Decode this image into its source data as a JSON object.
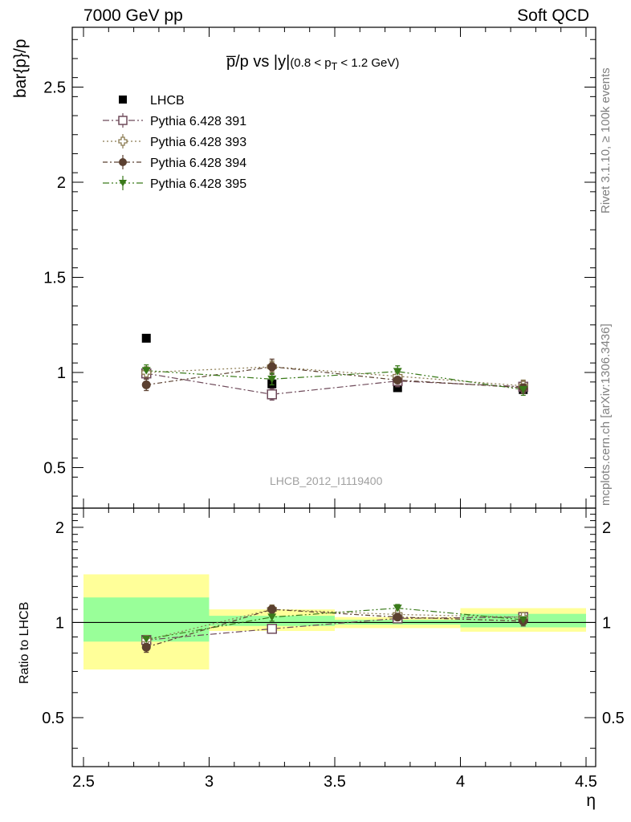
{
  "header": {
    "left": "7000 GeV pp",
    "right": "Soft QCD"
  },
  "side_text": {
    "top": "Rivet 3.1.10, ≥ 100k events",
    "bottom": "mcplots.cern.ch [arXiv:1306.3436]"
  },
  "watermark": "LHCB_2012_I1119400",
  "title": {
    "main": "p̅/p vs |y|",
    "cut": "(0.8 < p",
    "cut_sub": "T",
    "cut_end": " < 1.2 GeV)"
  },
  "ratio_ylabel": "Ratio to LHCB",
  "colors": {
    "data": "#000000",
    "p391": "#6e4a5a",
    "p393": "#8a7a50",
    "p394": "#5b4030",
    "p395": "#3a7a1a",
    "band_inner": "#99ff99",
    "band_outer": "#ffff99"
  },
  "chart_data": [
    {
      "type": "scatter",
      "title": "p̅/p vs |y| (0.8 < pT < 1.2 GeV)",
      "ylabel": "bar{p}/p",
      "xlabel": "η",
      "xlim": [
        2.5,
        4.5
      ],
      "ylim": [
        0.3,
        2.8
      ],
      "x_ticks": [
        "2.5",
        "3",
        "3.5",
        "4",
        "4.5"
      ],
      "y_ticks": [
        "0.5",
        "1",
        "1.5",
        "2",
        "2.5"
      ],
      "legend_position": "top-left",
      "x": [
        2.75,
        3.25,
        3.75,
        4.25
      ],
      "series": [
        {
          "name": "LHCB",
          "marker": "filled-square",
          "values": [
            1.18,
            0.94,
            0.92,
            0.91
          ],
          "errors": [
            0.0,
            0.0,
            0.0,
            0.0
          ]
        },
        {
          "name": "Pythia 6.428 391",
          "marker": "open-square",
          "values": [
            0.995,
            0.885,
            0.955,
            0.925
          ],
          "errors": [
            0.03,
            0.03,
            0.03,
            0.03
          ]
        },
        {
          "name": "Pythia 6.428 393",
          "marker": "open-cross",
          "values": [
            1.0,
            1.03,
            0.98,
            0.93
          ],
          "errors": [
            0.03,
            0.03,
            0.03,
            0.03
          ]
        },
        {
          "name": "Pythia 6.428 394",
          "marker": "filled-circle",
          "values": [
            0.935,
            1.03,
            0.96,
            0.92
          ],
          "errors": [
            0.03,
            0.04,
            0.03,
            0.03
          ]
        },
        {
          "name": "Pythia 6.428 395",
          "marker": "filled-triangle-down",
          "values": [
            1.01,
            0.965,
            1.005,
            0.91
          ],
          "errors": [
            0.03,
            0.03,
            0.03,
            0.03
          ]
        }
      ]
    },
    {
      "type": "scatter",
      "ylabel": "Ratio to LHCB",
      "xlabel": "η",
      "xlim": [
        2.5,
        4.5
      ],
      "ylim": [
        0.35,
        2.3
      ],
      "x_ticks": [
        "2.5",
        "3",
        "3.5",
        "4",
        "4.5"
      ],
      "y_ticks": [
        "0.5",
        "1",
        "2"
      ],
      "x": [
        2.75,
        3.25,
        3.75,
        4.25
      ],
      "bands": [
        {
          "x0": 2.5,
          "x1": 3.0,
          "inner": [
            0.87,
            1.2
          ],
          "outer": [
            0.71,
            1.42
          ]
        },
        {
          "x0": 3.0,
          "x1": 3.5,
          "inner": [
            0.975,
            1.05
          ],
          "outer": [
            0.94,
            1.1
          ]
        },
        {
          "x0": 3.5,
          "x1": 4.0,
          "inner": [
            0.985,
            1.02
          ],
          "outer": [
            0.96,
            1.04
          ]
        },
        {
          "x0": 4.0,
          "x1": 4.5,
          "inner": [
            0.965,
            1.065
          ],
          "outer": [
            0.935,
            1.11
          ]
        }
      ],
      "series": [
        {
          "name": "Pythia 6.428 391",
          "marker": "open-square",
          "values": [
            0.88,
            0.955,
            1.03,
            1.04
          ],
          "errors": [
            0.025,
            0.03,
            0.03,
            0.035
          ]
        },
        {
          "name": "Pythia 6.428 393",
          "marker": "open-cross",
          "values": [
            0.88,
            1.1,
            1.06,
            1.04
          ],
          "errors": [
            0.025,
            0.03,
            0.03,
            0.035
          ]
        },
        {
          "name": "Pythia 6.428 394",
          "marker": "filled-circle",
          "values": [
            0.835,
            1.1,
            1.04,
            1.01
          ],
          "errors": [
            0.03,
            0.035,
            0.03,
            0.035
          ]
        },
        {
          "name": "Pythia 6.428 395",
          "marker": "filled-triangle-down",
          "values": [
            0.885,
            1.04,
            1.11,
            1.02
          ],
          "errors": [
            0.025,
            0.03,
            0.03,
            0.035
          ]
        }
      ]
    }
  ]
}
